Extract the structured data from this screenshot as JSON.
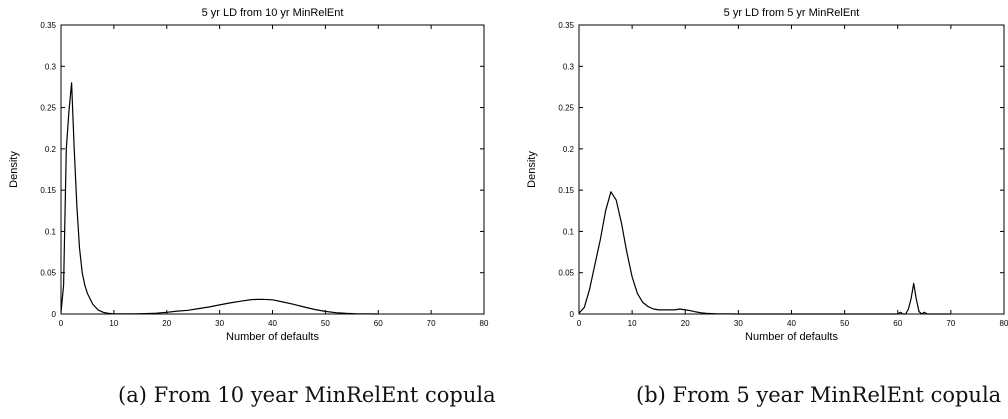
{
  "chart_data": [
    {
      "type": "line",
      "title": "5 yr LD from 10 yr MinRelEnt",
      "xlabel": "Number of defaults",
      "ylabel": "Density",
      "xlim": [
        0,
        80
      ],
      "ylim": [
        0,
        0.35
      ],
      "xticks": [
        0,
        10,
        20,
        30,
        40,
        50,
        60,
        70,
        80
      ],
      "yticks": [
        0,
        0.05,
        0.1,
        0.15,
        0.2,
        0.25,
        0.3,
        0.35
      ],
      "ytick_labels": [
        "0",
        "0.05",
        "0.1",
        "0.15",
        "0.2",
        "0.25",
        "0.3",
        "0.35"
      ],
      "grid": false,
      "series": [
        {
          "x": [
            0,
            0.5,
            1,
            1.5,
            2,
            2.5,
            3,
            3.5,
            4,
            4.5,
            5,
            6,
            7,
            8,
            9,
            10,
            12,
            14,
            16,
            18,
            20,
            22,
            24,
            26,
            28,
            30,
            32,
            34,
            36,
            38,
            40,
            42,
            44,
            46,
            48,
            50,
            52,
            54,
            56,
            58,
            60
          ],
          "y": [
            0.002,
            0.035,
            0.2,
            0.245,
            0.28,
            0.2,
            0.13,
            0.08,
            0.05,
            0.035,
            0.025,
            0.012,
            0.005,
            0.002,
            0.0007,
            0.0003,
            0.0002,
            0.0003,
            0.0005,
            0.001,
            0.002,
            0.0035,
            0.0045,
            0.0065,
            0.0085,
            0.011,
            0.0135,
            0.0155,
            0.0175,
            0.0178,
            0.0172,
            0.0145,
            0.0118,
            0.0085,
            0.0055,
            0.0032,
            0.0016,
            0.0007,
            0.0003,
            0.0001,
            3e-05
          ]
        }
      ],
      "caption": "(a) From 10 year MinRelEnt copula"
    },
    {
      "type": "line",
      "title": "5 yr LD from 5 yr MinRelEnt",
      "xlabel": "Number of defaults",
      "ylabel": "Density",
      "xlim": [
        0,
        80
      ],
      "ylim": [
        0,
        0.35
      ],
      "xticks": [
        0,
        10,
        20,
        30,
        40,
        50,
        60,
        70,
        80
      ],
      "yticks": [
        0,
        0.05,
        0.1,
        0.15,
        0.2,
        0.25,
        0.3,
        0.35
      ],
      "ytick_labels": [
        "0",
        "0.05",
        "0.1",
        "0.15",
        "0.2",
        "0.25",
        "0.3",
        "0.35"
      ],
      "grid": false,
      "series": [
        {
          "x": [
            0,
            1,
            2,
            3,
            4,
            5,
            6,
            7,
            8,
            9,
            10,
            11,
            12,
            13,
            14,
            15,
            16,
            17,
            18,
            19,
            20,
            21,
            22,
            23,
            24,
            25,
            26,
            28,
            30,
            40,
            50,
            60,
            60.5,
            61,
            61.5,
            62,
            62.5,
            63,
            63.5,
            64,
            64.5,
            65,
            65.5,
            66,
            70
          ],
          "y": [
            0.001,
            0.008,
            0.03,
            0.06,
            0.09,
            0.125,
            0.148,
            0.138,
            0.11,
            0.075,
            0.045,
            0.025,
            0.014,
            0.009,
            0.006,
            0.005,
            0.005,
            0.005,
            0.005,
            0.006,
            0.005,
            0.004,
            0.0025,
            0.0015,
            0.0008,
            0.0005,
            0.0003,
            0.0001,
            5e-05,
            1e-05,
            0.0,
            0.0,
            0.002,
            0.0,
            0.0,
            0.006,
            0.018,
            0.037,
            0.018,
            0.003,
            0.0,
            0.002,
            0.0,
            0.0,
            0.0
          ]
        }
      ],
      "caption": "(b) From 5 year MinRelEnt copula"
    }
  ]
}
